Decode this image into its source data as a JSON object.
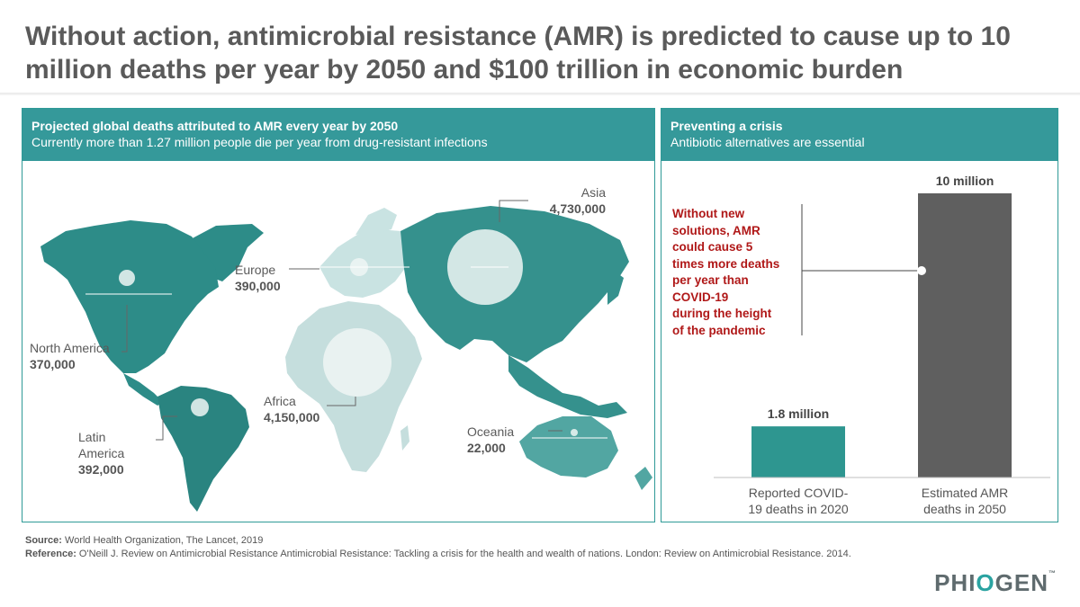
{
  "title": "Without action, antimicrobial resistance (AMR) is predicted to cause up to 10 million deaths per year by 2050 and $100 trillion in economic burden",
  "left_panel": {
    "heading": "Projected global deaths attributed to AMR every year by 2050",
    "subheading": "Currently  more than 1.27 million people die per year from drug-resistant infections",
    "regions": [
      {
        "name": "North America",
        "value": "370,000",
        "deaths": 370000,
        "color": "#2d8c88"
      },
      {
        "name": "Latin America",
        "value": "392,000",
        "deaths": 392000,
        "color": "#2a8480"
      },
      {
        "name": "Europe",
        "value": "390,000",
        "deaths": 390000,
        "color": "#c9e3e2"
      },
      {
        "name": "Africa",
        "value": "4,150,000",
        "deaths": 4150000,
        "color": "#c5dedd"
      },
      {
        "name": "Asia",
        "value": "4,730,000",
        "deaths": 4730000,
        "color": "#35918d"
      },
      {
        "name": "Oceania",
        "value": "22,000",
        "deaths": 22000,
        "color": "#52a6a2"
      }
    ],
    "latin_america_lines": [
      "Latin",
      "America"
    ]
  },
  "right_panel": {
    "heading": "Preventing a crisis",
    "subheading": "Antibiotic alternatives are essential",
    "callout_lines": [
      "Without new",
      "solutions,  AMR",
      "could  cause 5",
      "times  more deaths",
      "per year than",
      "COVID-19",
      "during the  height",
      "of the  pandemic"
    ],
    "callout_color": "#b01818"
  },
  "chart_data": {
    "type": "bar",
    "categories": [
      "Reported COVID-19 deaths in 2020",
      "Estimated AMR deaths in 2050"
    ],
    "category_lines": [
      [
        "Reported COVID-",
        "19 deaths in 2020"
      ],
      [
        "Estimated AMR",
        "deaths in 2050"
      ]
    ],
    "values": [
      1.8,
      10
    ],
    "value_labels": [
      "1.8 million",
      "10 million"
    ],
    "colors": [
      "#2e9690",
      "#5f5f5f"
    ],
    "ylim": [
      0,
      10
    ],
    "title": "",
    "xlabel": "",
    "ylabel": ""
  },
  "footer": {
    "source_label": "Source:",
    "source_text": " World Health Organization, The Lancet, 2019",
    "reference_label": "Reference:",
    "reference_text": " O'Neill J. Review  on Antimicrobial Resistance Antimicrobial Resistance: Tackling  a crisis for the health and wealth of nations. London:  Review  on Antimicrobial Resistance. 2014."
  },
  "logo": {
    "pre": "PHI",
    "o": "O",
    "post": "GEN",
    "tm": "™"
  }
}
